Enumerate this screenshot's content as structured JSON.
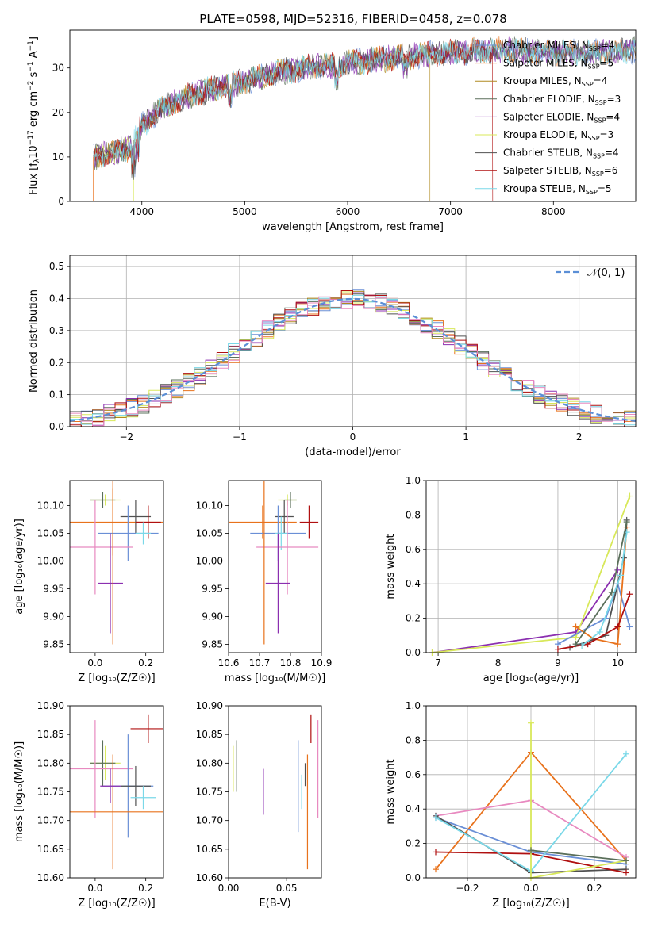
{
  "figure_title": "PLATE=0598, MJD=52316, FIBERID=0458, z=0.078",
  "colors": {
    "MILES_Chabrier": "#6a8fd6",
    "MILES_Salpeter": "#e8721c",
    "MILES_Kroupa": "#b08a20",
    "ELODIE_Chabrier": "#5a6f5a",
    "ELODIE_Salpeter": "#8b2fb0",
    "ELODIE_Kroupa": "#d8e85a",
    "STELIB_Chabrier": "#505050",
    "STELIB_Salpeter": "#b01010",
    "STELIB_Kroupa": "#7ad8e8",
    "extra_pink": "#e88ac0",
    "gauss": "#5b8fd6"
  },
  "chart_data": [
    {
      "id": "spectrum",
      "type": "line",
      "xlabel": "wavelength [Angstrom, rest frame]",
      "ylabel_main": "Flux [f",
      "ylabel_sub": "λ",
      "ylabel_rest": "10",
      "ylabel_exp": "−17",
      "ylabel_units": " erg cm",
      "ylabel_units_exp": "−2",
      "ylabel_units2": " s",
      "ylabel_units2_exp": "−1",
      "ylabel_units3": " A",
      "ylabel_units3_exp": "−1",
      "ylabel_close": "]",
      "xlim": [
        3300,
        8800
      ],
      "ylim": [
        0,
        38.5
      ],
      "xticks": [
        4000,
        5000,
        6000,
        7000,
        8000
      ],
      "yticks": [
        0,
        10,
        20,
        30
      ],
      "continuum": [
        [
          3530,
          10
        ],
        [
          3700,
          11
        ],
        [
          3900,
          12
        ],
        [
          4000,
          17
        ],
        [
          4200,
          21
        ],
        [
          4500,
          24
        ],
        [
          4800,
          26
        ],
        [
          5000,
          27
        ],
        [
          5300,
          29
        ],
        [
          5600,
          30
        ],
        [
          6000,
          31
        ],
        [
          6500,
          32.5
        ],
        [
          7000,
          33.5
        ],
        [
          7500,
          34
        ],
        [
          8000,
          33.5
        ],
        [
          8400,
          33.5
        ],
        [
          8800,
          34
        ]
      ],
      "legend": [
        {
          "name_pre": "Chabrier MILES, N",
          "name_sub": "SSP",
          "name_post": "=4",
          "color": "#6a8fd6"
        },
        {
          "name_pre": "Salpeter MILES, N",
          "name_sub": "SSP",
          "name_post": "=5",
          "color": "#e8721c"
        },
        {
          "name_pre": "Kroupa MILES, N",
          "name_sub": "SSP",
          "name_post": "=4",
          "color": "#b08a20"
        },
        {
          "name_pre": "Chabrier ELODIE, N",
          "name_sub": "SSP",
          "name_post": "=3",
          "color": "#5a6f5a"
        },
        {
          "name_pre": "Salpeter ELODIE, N",
          "name_sub": "SSP",
          "name_post": "=4",
          "color": "#8b2fb0"
        },
        {
          "name_pre": "Kroupa ELODIE, N",
          "name_sub": "SSP",
          "name_post": "=3",
          "color": "#d8e85a"
        },
        {
          "name_pre": "Chabrier STELIB, N",
          "name_sub": "SSP",
          "name_post": "=4",
          "color": "#505050"
        },
        {
          "name_pre": "Salpeter STELIB, N",
          "name_sub": "SSP",
          "name_post": "=6",
          "color": "#b01010"
        },
        {
          "name_pre": "Kroupa STELIB, N",
          "name_sub": "SSP",
          "name_post": "=5",
          "color": "#7ad8e8"
        }
      ]
    },
    {
      "id": "residuals",
      "type": "histogram",
      "xlabel": "(data-model)/error",
      "ylabel": "Normed distribution",
      "xlim": [
        -2.5,
        2.5
      ],
      "ylim": [
        0,
        0.535
      ],
      "xticks": [
        -2,
        -1,
        0,
        1,
        2
      ],
      "yticks": [
        0.0,
        0.1,
        0.2,
        0.3,
        0.4,
        0.5
      ],
      "grid": true,
      "legend_label": "𝒩(0, 1)",
      "bin_width": 0.1,
      "gaussian": {
        "mean": 0,
        "sigma": 1
      }
    },
    {
      "id": "age_vs_Z",
      "type": "errorbar",
      "xlabel": "Z [log₁₀(Z/Z☉)]",
      "ylabel": "age  [log₁₀(age/yr)]",
      "xlim": [
        -0.1,
        0.27
      ],
      "ylim": [
        9.835,
        10.145
      ],
      "xticks": [
        0.0,
        0.2
      ],
      "yticks": [
        9.85,
        9.9,
        9.95,
        10.0,
        10.05,
        10.1
      ],
      "points": [
        {
          "x": 0.04,
          "y": 10.11,
          "xerr": 0.06,
          "yerr": 0.01,
          "color": "#d8e85a"
        },
        {
          "x": 0.03,
          "y": 10.11,
          "xerr": 0.05,
          "yerr": 0.015,
          "color": "#5a6f5a"
        },
        {
          "x": 0.07,
          "y": 10.07,
          "xerr": 0.2,
          "yerr": 0.06,
          "color": "#e8721c"
        },
        {
          "x": 0.16,
          "y": 10.08,
          "xerr": 0.06,
          "yerr": 0.03,
          "color": "#505050"
        },
        {
          "x": 0.21,
          "y": 10.07,
          "xerr": 0.05,
          "yerr": 0.03,
          "color": "#b01010"
        },
        {
          "x": 0.13,
          "y": 10.05,
          "xerr": 0.12,
          "yerr": 0.05,
          "color": "#6a8fd6"
        },
        {
          "x": 0.19,
          "y": 10.05,
          "xerr": 0.03,
          "yerr": 0.02,
          "color": "#7ad8e8"
        },
        {
          "x": 0.0,
          "y": 10.025,
          "xerr": 0.15,
          "yerr": 0.085,
          "color": "#e88ac0"
        },
        {
          "x": 0.06,
          "y": 9.96,
          "xerr": 0.05,
          "yerr": 0.09,
          "color": "#8b2fb0"
        },
        {
          "x": 0.07,
          "y": 10.07,
          "xerr": 0.0,
          "yerr": 0.22,
          "color": "#e8721c"
        }
      ]
    },
    {
      "id": "age_vs_mass",
      "type": "errorbar",
      "xlabel": "mass [log₁₀(M/M☉)]",
      "ylabel": "",
      "xlim": [
        10.6,
        10.9
      ],
      "ylim": [
        9.835,
        10.145
      ],
      "xticks": [
        10.6,
        10.7,
        10.8,
        10.9
      ],
      "yticks": [
        9.85,
        9.9,
        9.95,
        10.0,
        10.05,
        10.1
      ],
      "points": [
        {
          "x": 10.79,
          "y": 10.11,
          "xerr": 0.03,
          "yerr": 0.01,
          "color": "#d8e85a"
        },
        {
          "x": 10.8,
          "y": 10.11,
          "xerr": 0.02,
          "yerr": 0.015,
          "color": "#5a6f5a"
        },
        {
          "x": 10.71,
          "y": 10.07,
          "xerr": 0.11,
          "yerr": 0.03,
          "color": "#e8721c"
        },
        {
          "x": 10.78,
          "y": 10.08,
          "xerr": 0.03,
          "yerr": 0.03,
          "color": "#505050"
        },
        {
          "x": 10.86,
          "y": 10.07,
          "xerr": 0.03,
          "yerr": 0.03,
          "color": "#b01010"
        },
        {
          "x": 10.76,
          "y": 10.05,
          "xerr": 0.09,
          "yerr": 0.05,
          "color": "#6a8fd6"
        },
        {
          "x": 10.77,
          "y": 10.05,
          "xerr": 0.02,
          "yerr": 0.03,
          "color": "#7ad8e8"
        },
        {
          "x": 10.79,
          "y": 10.025,
          "xerr": 0.1,
          "yerr": 0.085,
          "color": "#e88ac0"
        },
        {
          "x": 10.76,
          "y": 9.96,
          "xerr": 0.04,
          "yerr": 0.09,
          "color": "#8b2fb0"
        },
        {
          "x": 10.715,
          "y": 10.07,
          "xerr": 0.0,
          "yerr": 0.22,
          "color": "#e8721c"
        }
      ]
    },
    {
      "id": "weight_vs_age",
      "type": "line",
      "xlabel": "age  [log₁₀(age/yr)]",
      "ylabel": "mass weight",
      "xlim": [
        6.8,
        10.3
      ],
      "ylim": [
        0,
        1.0
      ],
      "xticks": [
        7,
        8,
        9,
        10
      ],
      "yticks": [
        0.0,
        0.2,
        0.4,
        0.6,
        0.8,
        1.0
      ],
      "grid": true,
      "series": [
        {
          "color": "#8b2fb0",
          "points": [
            [
              6.9,
              0.0
            ],
            [
              9.3,
              0.12
            ],
            [
              10.0,
              0.48
            ]
          ]
        },
        {
          "color": "#d8e85a",
          "points": [
            [
              6.9,
              0.0
            ],
            [
              9.3,
              0.09
            ],
            [
              10.2,
              0.91
            ]
          ]
        },
        {
          "color": "#6a8fd6",
          "points": [
            [
              9.0,
              0.05
            ],
            [
              9.8,
              0.2
            ],
            [
              10.0,
              0.4
            ],
            [
              10.2,
              0.15
            ]
          ]
        },
        {
          "color": "#e8721c",
          "points": [
            [
              9.3,
              0.15
            ],
            [
              9.6,
              0.08
            ],
            [
              10.0,
              0.05
            ],
            [
              10.15,
              0.73
            ]
          ]
        },
        {
          "color": "#505050",
          "points": [
            [
              9.2,
              0.03
            ],
            [
              9.8,
              0.1
            ],
            [
              10.1,
              0.55
            ],
            [
              10.15,
              0.77
            ]
          ]
        },
        {
          "color": "#b01010",
          "points": [
            [
              9.0,
              0.02
            ],
            [
              9.5,
              0.05
            ],
            [
              10.0,
              0.15
            ],
            [
              10.2,
              0.34
            ]
          ]
        },
        {
          "color": "#7ad8e8",
          "points": [
            [
              9.4,
              0.04
            ],
            [
              9.7,
              0.12
            ],
            [
              10.05,
              0.45
            ],
            [
              10.15,
              0.7
            ]
          ]
        },
        {
          "color": "#5a6f5a",
          "points": [
            [
              9.3,
              0.05
            ],
            [
              9.9,
              0.35
            ],
            [
              10.15,
              0.76
            ]
          ]
        }
      ]
    },
    {
      "id": "mass_vs_Z",
      "type": "errorbar",
      "xlabel": "Z [log₁₀(Z/Z☉)]",
      "ylabel": "mass [log₁₀(M/M☉)]",
      "xlim": [
        -0.1,
        0.27
      ],
      "ylim": [
        10.6,
        10.9
      ],
      "xticks": [
        0.0,
        0.2
      ],
      "yticks": [
        10.6,
        10.65,
        10.7,
        10.75,
        10.8,
        10.85,
        10.9
      ],
      "points": [
        {
          "x": 0.21,
          "y": 10.86,
          "xerr": 0.07,
          "yerr": 0.025,
          "color": "#b01010"
        },
        {
          "x": 0.04,
          "y": 10.8,
          "xerr": 0.06,
          "yerr": 0.03,
          "color": "#d8e85a"
        },
        {
          "x": 0.03,
          "y": 10.8,
          "xerr": 0.05,
          "yerr": 0.04,
          "color": "#5a6f5a"
        },
        {
          "x": 0.0,
          "y": 10.79,
          "xerr": 0.15,
          "yerr": 0.085,
          "color": "#e88ac0"
        },
        {
          "x": 0.13,
          "y": 10.76,
          "xerr": 0.1,
          "yerr": 0.09,
          "color": "#6a8fd6"
        },
        {
          "x": 0.16,
          "y": 10.76,
          "xerr": 0.06,
          "yerr": 0.035,
          "color": "#505050"
        },
        {
          "x": 0.19,
          "y": 10.74,
          "xerr": 0.05,
          "yerr": 0.02,
          "color": "#7ad8e8"
        },
        {
          "x": 0.07,
          "y": 10.715,
          "xerr": 0.2,
          "yerr": 0.1,
          "color": "#e8721c"
        },
        {
          "x": 0.06,
          "y": 10.76,
          "xerr": 0.04,
          "yerr": 0.03,
          "color": "#8b2fb0"
        }
      ]
    },
    {
      "id": "mass_vs_ebv",
      "type": "errorbar",
      "xlabel": "E(B-V)",
      "ylabel": "",
      "xlim": [
        0.0,
        0.08
      ],
      "ylim": [
        10.6,
        10.9
      ],
      "xticks": [
        0.0,
        0.05
      ],
      "yticks": [
        10.6,
        10.65,
        10.7,
        10.75,
        10.8,
        10.85,
        10.9
      ],
      "points": [
        {
          "x": 0.004,
          "y": 10.79,
          "xerr": 0.0,
          "yerr": 0.04,
          "color": "#d8e85a"
        },
        {
          "x": 0.007,
          "y": 10.795,
          "xerr": 0.0,
          "yerr": 0.045,
          "color": "#5a6f5a"
        },
        {
          "x": 0.03,
          "y": 10.75,
          "xerr": 0.0,
          "yerr": 0.04,
          "color": "#8b2fb0"
        },
        {
          "x": 0.06,
          "y": 10.76,
          "xerr": 0.0,
          "yerr": 0.08,
          "color": "#6a8fd6"
        },
        {
          "x": 0.063,
          "y": 10.75,
          "xerr": 0.0,
          "yerr": 0.03,
          "color": "#7ad8e8"
        },
        {
          "x": 0.066,
          "y": 10.78,
          "xerr": 0.0,
          "yerr": 0.02,
          "color": "#505050"
        },
        {
          "x": 0.068,
          "y": 10.715,
          "xerr": 0.0,
          "yerr": 0.1,
          "color": "#e8721c"
        },
        {
          "x": 0.071,
          "y": 10.86,
          "xerr": 0.0,
          "yerr": 0.025,
          "color": "#b01010"
        },
        {
          "x": 0.077,
          "y": 10.79,
          "xerr": 0.0,
          "yerr": 0.085,
          "color": "#e88ac0"
        }
      ]
    },
    {
      "id": "weight_vs_Z",
      "type": "line",
      "xlabel": "Z [log₁₀(Z/Z☉)]",
      "ylabel": "mass weight",
      "xlim": [
        -0.33,
        0.33
      ],
      "ylim": [
        0,
        1.0
      ],
      "xticks": [
        -0.2,
        0.0,
        0.2
      ],
      "yticks": [
        0.0,
        0.2,
        0.4,
        0.6,
        0.8,
        1.0
      ],
      "grid": true,
      "series": [
        {
          "color": "#e8721c",
          "points": [
            [
              -0.3,
              0.05
            ],
            [
              0.0,
              0.73
            ],
            [
              0.3,
              0.1
            ]
          ]
        },
        {
          "color": "#e88ac0",
          "points": [
            [
              -0.3,
              0.36
            ],
            [
              0.0,
              0.45
            ],
            [
              0.3,
              0.12
            ]
          ]
        },
        {
          "color": "#6a8fd6",
          "points": [
            [
              -0.3,
              0.35
            ],
            [
              0.0,
              0.15
            ],
            [
              0.3,
              0.08
            ]
          ]
        },
        {
          "color": "#505050",
          "points": [
            [
              -0.3,
              0.36
            ],
            [
              0.0,
              0.03
            ],
            [
              0.3,
              0.05
            ]
          ]
        },
        {
          "color": "#b01010",
          "points": [
            [
              -0.3,
              0.15
            ],
            [
              0.0,
              0.14
            ],
            [
              0.3,
              0.03
            ]
          ]
        },
        {
          "color": "#7ad8e8",
          "points": [
            [
              -0.3,
              0.35
            ],
            [
              0.0,
              0.04
            ],
            [
              0.3,
              0.72
            ]
          ]
        },
        {
          "color": "#d8e85a",
          "points": [
            [
              0.0,
              0.9
            ],
            [
              0.0,
              0.0
            ],
            [
              0.3,
              0.1
            ]
          ]
        },
        {
          "color": "#5a6f5a",
          "points": [
            [
              0.0,
              0.16
            ],
            [
              0.3,
              0.1
            ]
          ]
        }
      ]
    }
  ]
}
